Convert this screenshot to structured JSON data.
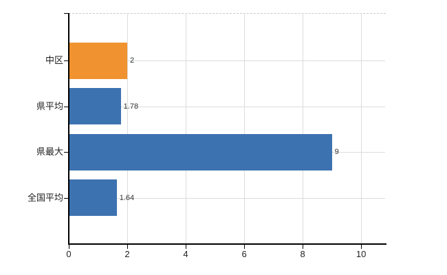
{
  "chart_data": {
    "type": "bar",
    "orientation": "horizontal",
    "title": "",
    "xlabel": "",
    "ylabel": "",
    "categories": [
      "中区",
      "県平均",
      "県最大",
      "全国平均"
    ],
    "values": [
      2,
      1.78,
      9,
      1.64
    ],
    "value_labels": [
      "2",
      "1.78",
      "9",
      "1.64"
    ],
    "bar_colors": [
      "#F0922F",
      "#3D72B0",
      "#3D72B0",
      "#3D72B0"
    ],
    "x_ticks": [
      0,
      2,
      4,
      6,
      8,
      10
    ],
    "x_tick_labels": [
      "0",
      "2",
      "4",
      "6",
      "8",
      "10"
    ],
    "xlim": [
      0,
      10.82
    ],
    "grid": true,
    "legend": false,
    "colors": {
      "highlight_bar": "#F0922F",
      "default_bar": "#3D72B0",
      "axis": "#000000",
      "vertical_grid": "#dcdcdc",
      "horizontal_grid": "#d7ded7",
      "top_border": "#c9c9c9",
      "tick_label": "#222222",
      "value_label": "#333333",
      "background": "#ffffff"
    }
  }
}
